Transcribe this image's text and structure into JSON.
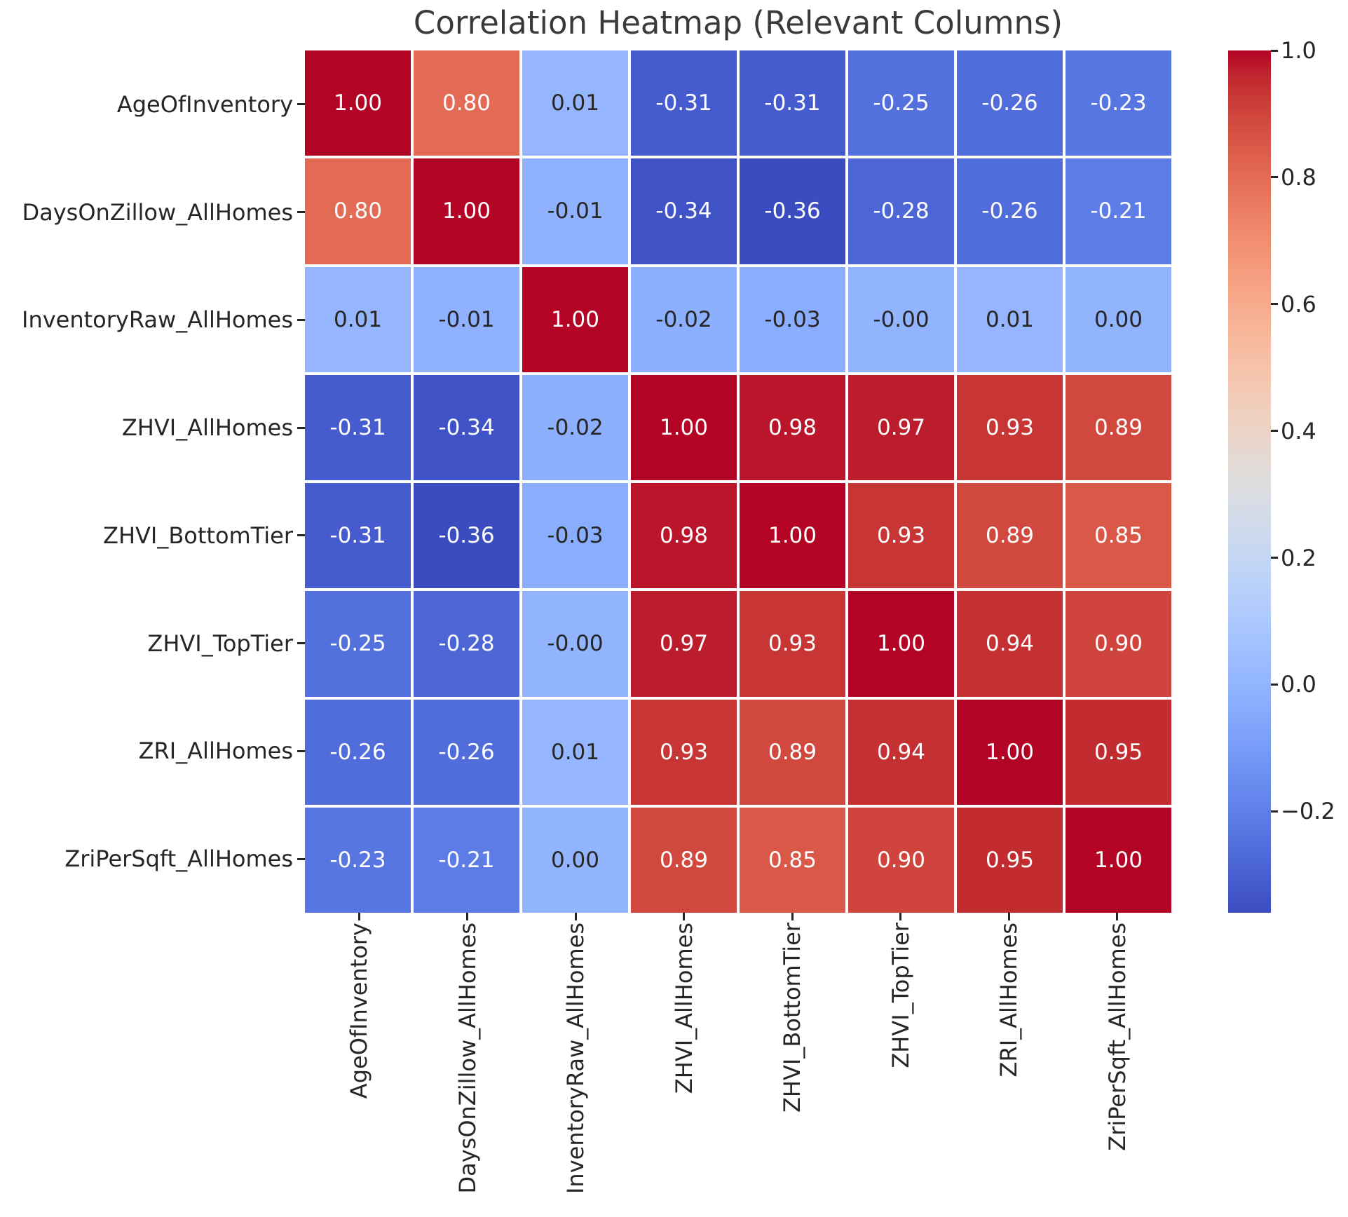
{
  "chart_data": {
    "type": "heatmap",
    "title": "Correlation Heatmap (Relevant Columns)",
    "labels": [
      "AgeOfInventory",
      "DaysOnZillow_AllHomes",
      "InventoryRaw_AllHomes",
      "ZHVI_AllHomes",
      "ZHVI_BottomTier",
      "ZHVI_TopTier",
      "ZRI_AllHomes",
      "ZriPerSqft_AllHomes"
    ],
    "matrix": [
      [
        "1.00",
        "0.80",
        "0.01",
        "-0.31",
        "-0.31",
        "-0.25",
        "-0.26",
        "-0.23"
      ],
      [
        "0.80",
        "1.00",
        "-0.01",
        "-0.34",
        "-0.36",
        "-0.28",
        "-0.26",
        "-0.21"
      ],
      [
        "0.01",
        "-0.01",
        "1.00",
        "-0.02",
        "-0.03",
        "-0.00",
        "0.01",
        "0.00"
      ],
      [
        "-0.31",
        "-0.34",
        "-0.02",
        "1.00",
        "0.98",
        "0.97",
        "0.93",
        "0.89"
      ],
      [
        "-0.31",
        "-0.36",
        "-0.03",
        "0.98",
        "1.00",
        "0.93",
        "0.89",
        "0.85"
      ],
      [
        "-0.25",
        "-0.28",
        "-0.00",
        "0.97",
        "0.93",
        "1.00",
        "0.94",
        "0.90"
      ],
      [
        "-0.26",
        "-0.26",
        "0.01",
        "0.93",
        "0.89",
        "0.94",
        "1.00",
        "0.95"
      ],
      [
        "-0.23",
        "-0.21",
        "0.00",
        "0.89",
        "0.85",
        "0.90",
        "0.95",
        "1.00"
      ]
    ],
    "colormap": "coolwarm",
    "vmin": -0.36,
    "vmax": 1.0,
    "colorbar": {
      "tick_labels": [
        "1.0",
        "0.8",
        "0.6",
        "0.4",
        "0.2",
        "0.0",
        "−0.2"
      ],
      "tick_values": [
        1.0,
        0.8,
        0.6,
        0.4,
        0.2,
        0.0,
        -0.2
      ]
    },
    "grid_line_color": "#ffffff",
    "colors": {
      "max_cell": "#b40426",
      "min_cell": "#3b4cc0",
      "text": "#262626",
      "annotation_light": "#ffffff",
      "annotation_dark": "#262626",
      "title": "#3a3a3a"
    },
    "legend_position": "right-colorbar",
    "grid": false
  }
}
